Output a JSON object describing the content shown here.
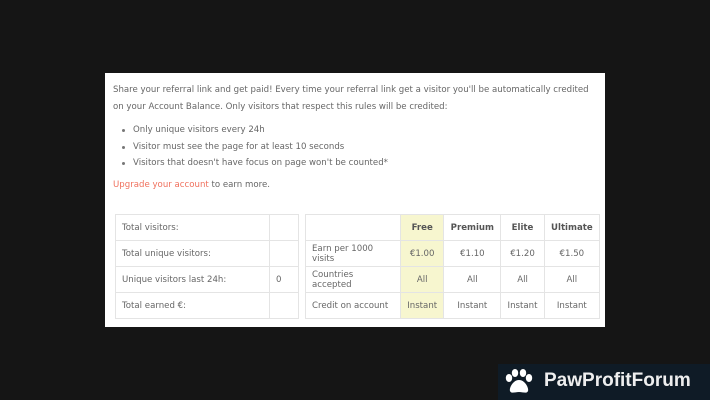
{
  "intro": "Share your referral link and get paid! Every time your referral link get a visitor you'll be automatically credited on your Account Balance. Only visitors that respect this rules will be credited:",
  "rules": [
    "Only unique visitors every 24h",
    "Visitor must see the page for at least 10 seconds",
    "Visitors that doesn't have focus on page won't be counted*"
  ],
  "upgrade_link": "Upgrade your account",
  "upgrade_rest": " to earn more.",
  "stats": [
    {
      "label": "Total visitors:",
      "value": ""
    },
    {
      "label": "Total unique visitors:",
      "value": ""
    },
    {
      "label": "Unique visitors last 24h:",
      "value": "0"
    },
    {
      "label": "Total earned €:",
      "value": ""
    }
  ],
  "plans": {
    "headers": [
      "",
      "Free",
      "Premium",
      "Elite",
      "Ultimate"
    ],
    "rows": [
      [
        "Earn per 1000 visits",
        "€1.00",
        "€1.10",
        "€1.20",
        "€1.50"
      ],
      [
        "Countries accepted",
        "All",
        "All",
        "All",
        "All"
      ],
      [
        "Credit on account",
        "Instant",
        "Instant",
        "Instant",
        "Instant"
      ]
    ]
  },
  "highlight_color": "#f7f6cf",
  "link_color": "#f0715e",
  "watermark": "PawProfitForum"
}
